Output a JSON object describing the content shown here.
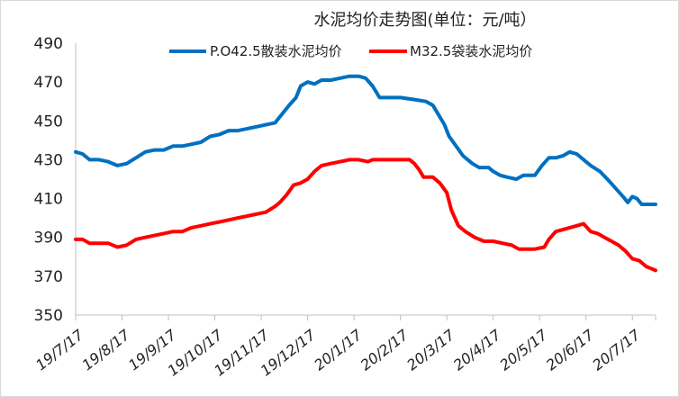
{
  "chart_data": {
    "type": "line",
    "title": "水泥均价走势图(单位：元/吨）",
    "xlabel": "",
    "ylabel": "",
    "ylim": [
      350,
      490
    ],
    "yticks": [
      350,
      370,
      390,
      410,
      430,
      450,
      470,
      490
    ],
    "x_tick_labels": [
      "19/7/17",
      "19/8/17",
      "19/9/17",
      "19/10/17",
      "19/11/17",
      "19/12/17",
      "20/1/17",
      "20/2/17",
      "20/3/17",
      "20/4/17",
      "20/5/17",
      "20/6/17",
      "20/7/17"
    ],
    "legend_position": "top",
    "grid": false,
    "x_units": "months since 19/7/17",
    "series": [
      {
        "name": "P.O42.5散装水泥均价",
        "color": "#0070C0",
        "points": [
          [
            0,
            434
          ],
          [
            0.15,
            433
          ],
          [
            0.3,
            430
          ],
          [
            0.5,
            430
          ],
          [
            0.7,
            429
          ],
          [
            0.9,
            427
          ],
          [
            1.1,
            428
          ],
          [
            1.3,
            431
          ],
          [
            1.5,
            434
          ],
          [
            1.7,
            435
          ],
          [
            1.9,
            435
          ],
          [
            2.1,
            437
          ],
          [
            2.3,
            437
          ],
          [
            2.5,
            438
          ],
          [
            2.7,
            439
          ],
          [
            2.9,
            442
          ],
          [
            3.1,
            443
          ],
          [
            3.3,
            445
          ],
          [
            3.5,
            445
          ],
          [
            3.7,
            446
          ],
          [
            3.9,
            447
          ],
          [
            4.1,
            448
          ],
          [
            4.3,
            449
          ],
          [
            4.5,
            455
          ],
          [
            4.6,
            458
          ],
          [
            4.75,
            462
          ],
          [
            4.85,
            468
          ],
          [
            5.0,
            470
          ],
          [
            5.15,
            469
          ],
          [
            5.3,
            471
          ],
          [
            5.5,
            471
          ],
          [
            5.7,
            472
          ],
          [
            5.9,
            473
          ],
          [
            6.1,
            473
          ],
          [
            6.25,
            472
          ],
          [
            6.4,
            468
          ],
          [
            6.55,
            462
          ],
          [
            6.8,
            462
          ],
          [
            7.0,
            462
          ],
          [
            7.3,
            461
          ],
          [
            7.55,
            460
          ],
          [
            7.7,
            458
          ],
          [
            7.8,
            454
          ],
          [
            7.95,
            448
          ],
          [
            8.05,
            442
          ],
          [
            8.2,
            437
          ],
          [
            8.35,
            432
          ],
          [
            8.55,
            428
          ],
          [
            8.7,
            426
          ],
          [
            8.9,
            426
          ],
          [
            9.0,
            424
          ],
          [
            9.15,
            422
          ],
          [
            9.3,
            421
          ],
          [
            9.5,
            420
          ],
          [
            9.65,
            422
          ],
          [
            9.9,
            422
          ],
          [
            10.05,
            427
          ],
          [
            10.2,
            431
          ],
          [
            10.35,
            431
          ],
          [
            10.5,
            432
          ],
          [
            10.65,
            434
          ],
          [
            10.8,
            433
          ],
          [
            10.95,
            430
          ],
          [
            11.1,
            427
          ],
          [
            11.3,
            424
          ],
          [
            11.5,
            419
          ],
          [
            11.65,
            415
          ],
          [
            11.8,
            411
          ],
          [
            11.9,
            408
          ],
          [
            12.0,
            411
          ],
          [
            12.1,
            410
          ],
          [
            12.2,
            407
          ],
          [
            12.4,
            407
          ],
          [
            12.5,
            407
          ]
        ]
      },
      {
        "name": "M32.5袋装水泥均价",
        "color": "#FF0000",
        "points": [
          [
            0,
            389
          ],
          [
            0.15,
            389
          ],
          [
            0.3,
            387
          ],
          [
            0.5,
            387
          ],
          [
            0.7,
            387
          ],
          [
            0.9,
            385
          ],
          [
            1.1,
            386
          ],
          [
            1.3,
            389
          ],
          [
            1.5,
            390
          ],
          [
            1.7,
            391
          ],
          [
            1.9,
            392
          ],
          [
            2.1,
            393
          ],
          [
            2.3,
            393
          ],
          [
            2.5,
            395
          ],
          [
            2.7,
            396
          ],
          [
            2.9,
            397
          ],
          [
            3.1,
            398
          ],
          [
            3.3,
            399
          ],
          [
            3.5,
            400
          ],
          [
            3.7,
            401
          ],
          [
            3.9,
            402
          ],
          [
            4.1,
            403
          ],
          [
            4.3,
            406
          ],
          [
            4.4,
            408
          ],
          [
            4.55,
            412
          ],
          [
            4.7,
            417
          ],
          [
            4.85,
            418
          ],
          [
            5.0,
            420
          ],
          [
            5.15,
            424
          ],
          [
            5.3,
            427
          ],
          [
            5.5,
            428
          ],
          [
            5.7,
            429
          ],
          [
            5.9,
            430
          ],
          [
            6.1,
            430
          ],
          [
            6.3,
            429
          ],
          [
            6.4,
            430
          ],
          [
            6.6,
            430
          ],
          [
            6.8,
            430
          ],
          [
            7.0,
            430
          ],
          [
            7.2,
            430
          ],
          [
            7.3,
            428
          ],
          [
            7.4,
            425
          ],
          [
            7.5,
            421
          ],
          [
            7.7,
            421
          ],
          [
            7.85,
            418
          ],
          [
            8.0,
            413
          ],
          [
            8.1,
            404
          ],
          [
            8.25,
            396
          ],
          [
            8.4,
            393
          ],
          [
            8.6,
            390
          ],
          [
            8.8,
            388
          ],
          [
            9.0,
            388
          ],
          [
            9.2,
            387
          ],
          [
            9.4,
            386
          ],
          [
            9.55,
            384
          ],
          [
            9.7,
            384
          ],
          [
            9.9,
            384
          ],
          [
            10.1,
            385
          ],
          [
            10.2,
            389
          ],
          [
            10.35,
            393
          ],
          [
            10.5,
            394
          ],
          [
            10.65,
            395
          ],
          [
            10.8,
            396
          ],
          [
            10.95,
            397
          ],
          [
            11.1,
            393
          ],
          [
            11.25,
            392
          ],
          [
            11.4,
            390
          ],
          [
            11.55,
            388
          ],
          [
            11.7,
            386
          ],
          [
            11.85,
            383
          ],
          [
            12.0,
            379
          ],
          [
            12.15,
            378
          ],
          [
            12.3,
            375
          ],
          [
            12.4,
            374
          ],
          [
            12.5,
            373
          ]
        ]
      }
    ]
  }
}
